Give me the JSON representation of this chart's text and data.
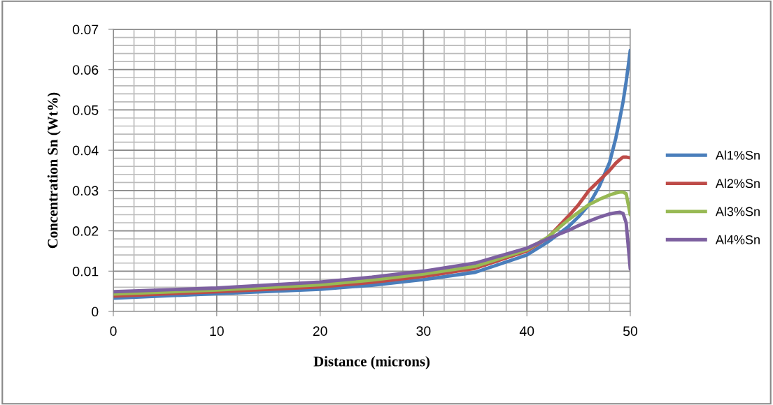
{
  "chart_data": {
    "type": "line",
    "xlabel": "Distance (microns)",
    "ylabel": "Concentration Sn (Wt%)",
    "xlim": [
      0,
      50
    ],
    "ylim": [
      0,
      0.07
    ],
    "xticks": [
      0,
      10,
      20,
      30,
      40,
      50
    ],
    "yticks": [
      0,
      0.01,
      0.02,
      0.03,
      0.04,
      0.05,
      0.06,
      0.07
    ],
    "grid": true,
    "legend": "right",
    "marker": "none",
    "line_style": "solid",
    "x": [
      0,
      10,
      20,
      25,
      30,
      35,
      40,
      42,
      44,
      45,
      46,
      47,
      48,
      48.6,
      49,
      49.3,
      49.6,
      50
    ],
    "series": [
      {
        "name": "Al1%Sn",
        "color": "#4a7ebb",
        "values": [
          0.0033,
          0.0044,
          0.0055,
          0.0065,
          0.0079,
          0.0097,
          0.014,
          0.0172,
          0.021,
          0.0235,
          0.0265,
          0.031,
          0.037,
          0.043,
          0.048,
          0.052,
          0.057,
          0.0648
        ]
      },
      {
        "name": "Al2%Sn",
        "color": "#be4b48",
        "values": [
          0.0038,
          0.0049,
          0.0061,
          0.0072,
          0.0087,
          0.0107,
          0.015,
          0.0182,
          0.0236,
          0.0265,
          0.03,
          0.0325,
          0.035,
          0.0368,
          0.0377,
          0.0383,
          0.0383,
          0.0381
        ]
      },
      {
        "name": "Al3%Sn",
        "color": "#98b954",
        "values": [
          0.0043,
          0.0053,
          0.0066,
          0.0078,
          0.0093,
          0.0112,
          0.0153,
          0.0184,
          0.0227,
          0.0246,
          0.0265,
          0.0278,
          0.0289,
          0.0294,
          0.0296,
          0.0296,
          0.0292,
          0.024
        ]
      },
      {
        "name": "Al4%Sn",
        "color": "#7d60a0",
        "values": [
          0.0049,
          0.0058,
          0.0073,
          0.0085,
          0.01,
          0.012,
          0.0157,
          0.018,
          0.0201,
          0.0213,
          0.0224,
          0.0234,
          0.0242,
          0.0245,
          0.0246,
          0.0243,
          0.022,
          0.0105
        ]
      }
    ]
  }
}
